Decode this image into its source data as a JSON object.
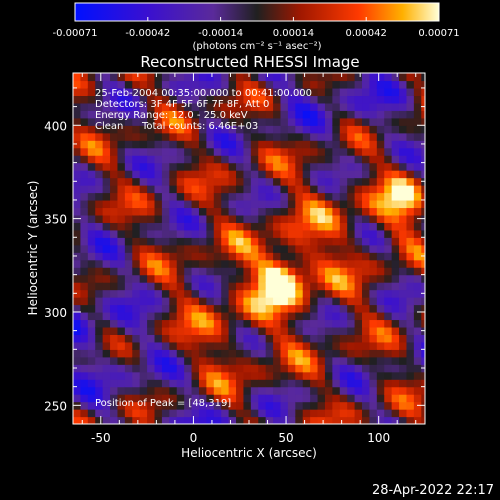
{
  "colorbar": {
    "ticks": [
      "-0.00071",
      "-0.00042",
      "-0.00014",
      "0.00014",
      "0.00042",
      "0.00071"
    ],
    "unit_label": "(photons cm⁻² s⁻¹ asec⁻²)"
  },
  "chart_data": {
    "type": "heatmap",
    "title": "Reconstructed RHESSI Image",
    "xlabel": "Heliocentric X (arcsec)",
    "ylabel": "Heliocentric Y (arcsec)",
    "xlim": [
      -65,
      125
    ],
    "ylim": [
      240,
      428
    ],
    "xticks": [
      -50,
      0,
      50,
      100
    ],
    "yticks": [
      250,
      300,
      350,
      400
    ],
    "color_range": [
      -0.00071,
      0.00071
    ],
    "peak": [
      48,
      319
    ],
    "colors": {
      "background": "#000000",
      "text": "#ffffff"
    }
  },
  "annotations": {
    "time_range": "25-Feb-2004 00:35:00.000 to 00:41:00.000",
    "detectors": "Detectors: 3F 4F 5F 6F 7F 8F, Att 0",
    "energy": "Energy Range: 12.0 - 25.0 keV",
    "method": "Clean",
    "total_counts": "Total counts: 6.46E+03",
    "peak_position": "Position of Peak = [48,319]"
  },
  "footer": {
    "timestamp": "28-Apr-2022 22:17"
  }
}
